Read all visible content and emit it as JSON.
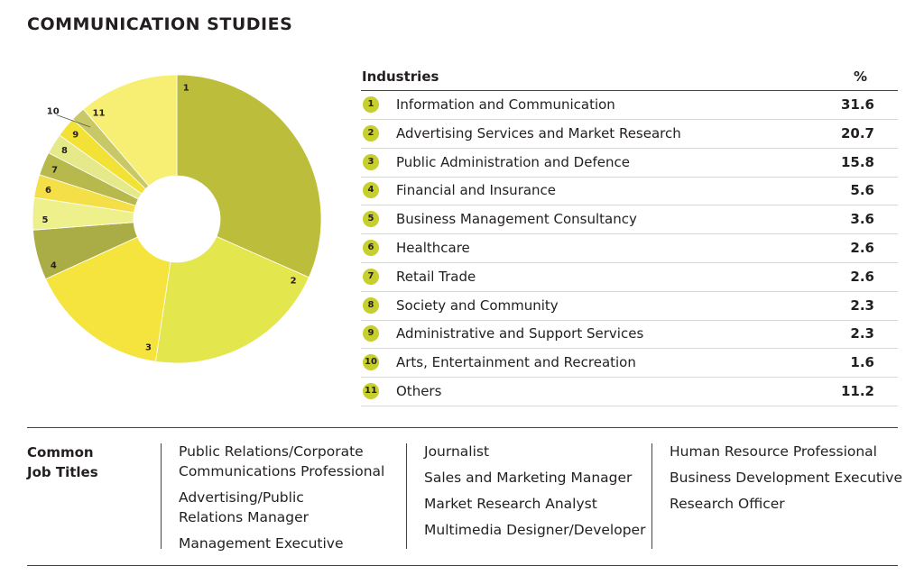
{
  "chart_data": {
    "type": "pie",
    "title": "COMMUNICATION STUDIES",
    "column_headers": [
      "Industries",
      "%"
    ],
    "slice_labels": [
      "1",
      "2",
      "3",
      "4",
      "5",
      "6",
      "7",
      "8",
      "9",
      "10",
      "11"
    ],
    "categories": [
      "Information and Communication",
      "Advertising Services and Market Research",
      "Public Administration and Defence",
      "Financial and Insurance",
      "Business Management Consultancy",
      "Healthcare",
      "Retail Trade",
      "Society and Community",
      "Administrative and Support Services",
      "Arts, Entertainment and Recreation",
      "Others"
    ],
    "values": [
      31.6,
      20.7,
      15.8,
      5.6,
      3.6,
      2.6,
      2.6,
      2.3,
      2.3,
      1.6,
      11.2
    ],
    "colors": [
      "#bdbd3c",
      "#e3e64c",
      "#f6e43e",
      "#aaac46",
      "#eef08c",
      "#f5df48",
      "#b8b94c",
      "#e6e98a",
      "#f2e236",
      "#c8c966",
      "#f7ef74"
    ]
  },
  "job_titles": {
    "label": [
      "Common",
      "Job Titles"
    ],
    "columns": [
      [
        [
          "Public Relations/Corporate",
          "Communications Professional"
        ],
        [
          "Advertising/Public",
          "Relations Manager"
        ],
        [
          "Management Executive"
        ]
      ],
      [
        [
          "Journalist"
        ],
        [
          "Sales and Marketing Manager"
        ],
        [
          "Market Research Analyst"
        ],
        [
          "Multimedia Designer/Developer"
        ]
      ],
      [
        [
          "Human Resource Professional"
        ],
        [
          "Business Development Executive"
        ],
        [
          "Research Officer"
        ]
      ]
    ]
  }
}
